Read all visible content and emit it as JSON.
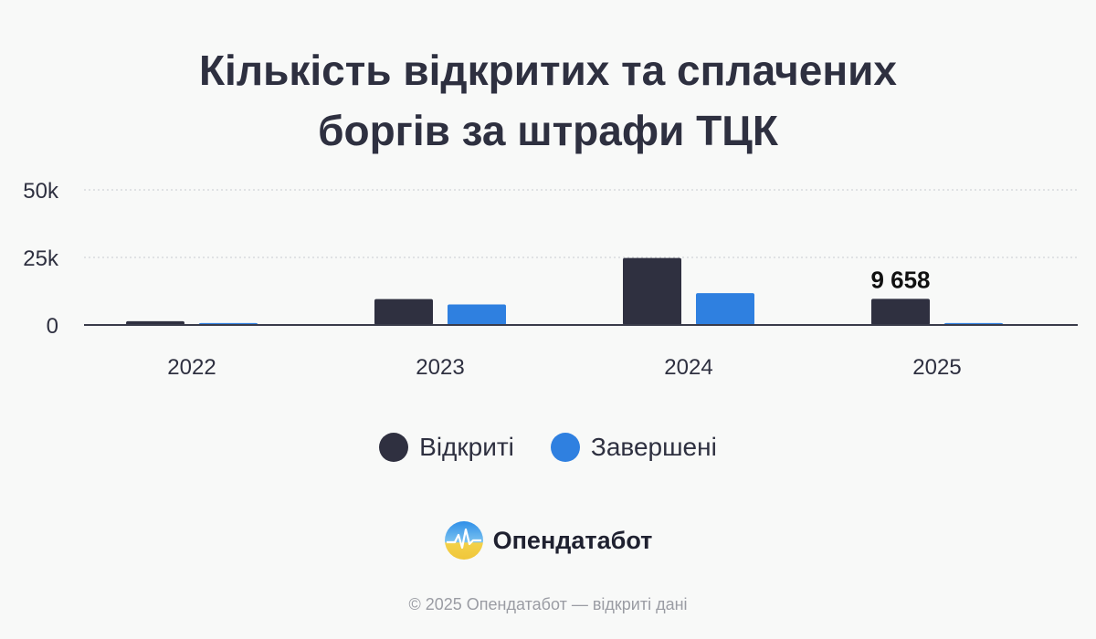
{
  "title_line1": "Кількість відкритих та сплачених",
  "title_line2": "боргів за штрафи ТЦК",
  "colors": {
    "opened": "#2f3040",
    "completed": "#2f80e0",
    "grid": "#c9cbd0",
    "axis": "#3a3c4a"
  },
  "chart_data": {
    "type": "bar",
    "categories": [
      "2022",
      "2023",
      "2024",
      "2025"
    ],
    "series": [
      {
        "name": "Відкриті",
        "values": [
          1400,
          9600,
          24800,
          9658
        ]
      },
      {
        "name": "Завершені",
        "values": [
          700,
          7600,
          11800,
          700
        ]
      }
    ],
    "ylim": [
      0,
      50000
    ],
    "yticks": [
      0,
      25000,
      50000
    ],
    "ytick_labels": [
      "0",
      "25k",
      "50k"
    ],
    "annotations": [
      {
        "category": "2025",
        "series": "Відкриті",
        "text": "9 658"
      }
    ],
    "grid": true,
    "legend_position": "bottom"
  },
  "legend": {
    "opened": "Відкриті",
    "completed": "Завершені"
  },
  "brand": {
    "name": "Опендатабот",
    "logo_icon": "opendatabot-logo-icon"
  },
  "footer": "© 2025 Опендатабот — відкриті дані"
}
